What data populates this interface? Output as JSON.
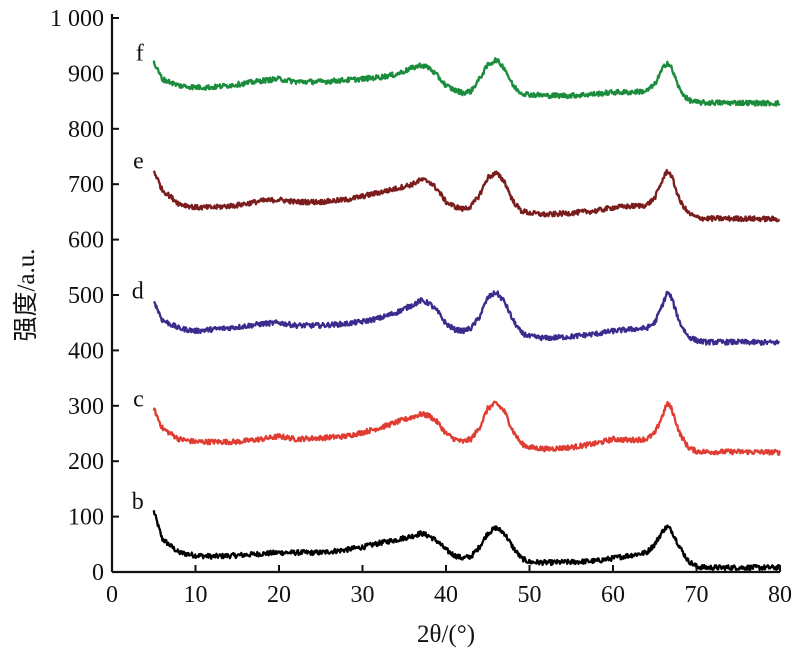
{
  "chart_data": {
    "type": "line",
    "xlabel": "2θ/(°)",
    "ylabel": "强度/a.u.",
    "xlim": [
      0,
      80
    ],
    "ylim": [
      0,
      1000
    ],
    "x_ticks": [
      "0",
      "10",
      "20",
      "30",
      "40",
      "50",
      "60",
      "70",
      "80"
    ],
    "y_ticks": [
      "0",
      "100",
      "200",
      "300",
      "400",
      "500",
      "600",
      "700",
      "800",
      "900",
      "1 000"
    ],
    "grid": false,
    "series": [
      {
        "name": "b",
        "color": "#000000",
        "x": [
          5,
          6,
          8,
          10,
          12,
          15,
          18,
          20,
          22,
          25,
          28,
          30,
          32,
          34,
          36,
          37,
          38,
          39,
          40,
          41,
          42,
          43,
          44,
          45,
          46,
          47,
          48,
          49,
          50,
          52,
          55,
          58,
          60,
          62,
          64,
          65,
          66,
          66.5,
          67,
          68,
          69,
          70,
          71,
          72,
          75,
          80
        ],
        "y": [
          110,
          60,
          35,
          30,
          28,
          30,
          33,
          35,
          35,
          35,
          40,
          45,
          52,
          58,
          65,
          70,
          65,
          55,
          40,
          30,
          25,
          28,
          45,
          70,
          80,
          70,
          45,
          25,
          18,
          17,
          18,
          20,
          25,
          30,
          35,
          50,
          75,
          82,
          75,
          45,
          20,
          10,
          8,
          8,
          8,
          8
        ]
      },
      {
        "name": "c",
        "color": "#e03c32",
        "x": [
          5,
          6,
          8,
          10,
          12,
          15,
          18,
          20,
          22,
          25,
          28,
          30,
          32,
          34,
          36,
          37,
          38,
          39,
          40,
          41,
          42,
          43,
          44,
          45,
          46,
          47,
          48,
          49,
          50,
          52,
          55,
          58,
          60,
          62,
          64,
          65,
          66,
          66.5,
          67,
          68,
          69,
          70,
          71,
          72,
          75,
          80
        ],
        "y": [
          295,
          260,
          240,
          235,
          235,
          235,
          240,
          245,
          240,
          242,
          245,
          252,
          260,
          270,
          280,
          285,
          282,
          270,
          250,
          240,
          235,
          240,
          260,
          295,
          305,
          290,
          255,
          232,
          225,
          222,
          225,
          232,
          240,
          238,
          240,
          250,
          285,
          305,
          295,
          250,
          225,
          218,
          217,
          217,
          217,
          216
        ]
      },
      {
        "name": "d",
        "color": "#3c2a8c",
        "x": [
          5,
          6,
          8,
          10,
          12,
          15,
          18,
          20,
          22,
          25,
          28,
          30,
          32,
          34,
          36,
          37,
          38,
          39,
          40,
          41,
          42,
          43,
          44,
          45,
          46,
          47,
          48,
          49,
          50,
          52,
          55,
          58,
          60,
          62,
          64,
          65,
          66,
          66.5,
          67,
          68,
          69,
          70,
          71,
          72,
          75,
          80
        ],
        "y": [
          490,
          455,
          440,
          435,
          438,
          442,
          448,
          450,
          445,
          445,
          448,
          452,
          458,
          468,
          482,
          490,
          485,
          470,
          448,
          438,
          435,
          440,
          460,
          495,
          505,
          488,
          455,
          432,
          425,
          422,
          425,
          430,
          435,
          438,
          440,
          450,
          485,
          505,
          495,
          450,
          425,
          418,
          415,
          415,
          415,
          414
        ]
      },
      {
        "name": "e",
        "color": "#7a1c1c",
        "x": [
          5,
          6,
          8,
          10,
          12,
          15,
          18,
          20,
          22,
          25,
          28,
          30,
          32,
          34,
          36,
          37,
          38,
          39,
          40,
          41,
          42,
          43,
          44,
          45,
          46,
          47,
          48,
          49,
          50,
          52,
          55,
          58,
          60,
          62,
          64,
          65,
          66,
          66.5,
          67,
          68,
          69,
          70,
          71,
          72,
          75,
          80
        ],
        "y": [
          725,
          690,
          665,
          658,
          658,
          662,
          670,
          672,
          668,
          668,
          672,
          678,
          685,
          692,
          700,
          708,
          705,
          690,
          668,
          660,
          655,
          660,
          680,
          712,
          720,
          705,
          670,
          652,
          648,
          645,
          648,
          652,
          658,
          660,
          662,
          675,
          710,
          725,
          715,
          670,
          648,
          640,
          638,
          638,
          638,
          637
        ]
      },
      {
        "name": "f",
        "color": "#1a8c3c",
        "x": [
          5,
          6,
          8,
          10,
          12,
          15,
          18,
          20,
          22,
          25,
          28,
          30,
          32,
          34,
          36,
          37,
          38,
          39,
          40,
          41,
          42,
          43,
          44,
          45,
          46,
          47,
          48,
          49,
          50,
          52,
          55,
          58,
          60,
          62,
          64,
          65,
          66,
          66.5,
          67,
          68,
          69,
          70,
          71,
          72,
          75,
          80
        ],
        "y": [
          920,
          890,
          878,
          875,
          875,
          880,
          887,
          890,
          885,
          885,
          888,
          890,
          893,
          898,
          910,
          915,
          910,
          895,
          878,
          870,
          865,
          868,
          890,
          915,
          925,
          910,
          878,
          865,
          862,
          860,
          860,
          863,
          866,
          866,
          868,
          880,
          910,
          920,
          910,
          870,
          852,
          848,
          847,
          847,
          847,
          846
        ]
      }
    ]
  }
}
